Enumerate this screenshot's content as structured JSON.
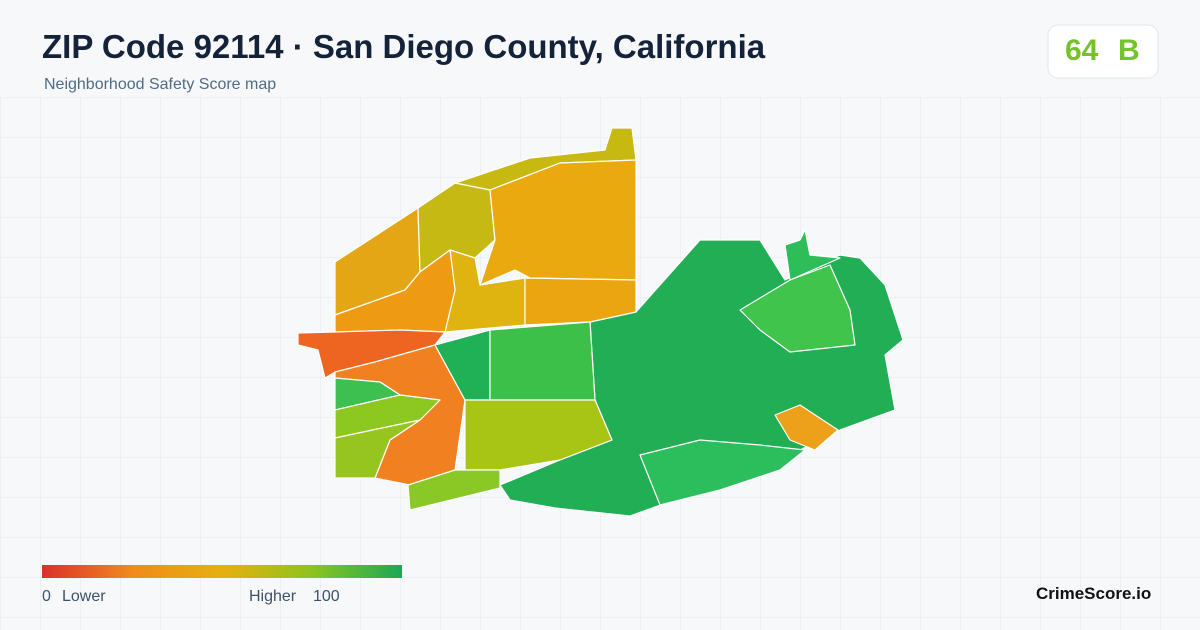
{
  "header": {
    "title": "ZIP Code 92114 · San Diego County, California",
    "subtitle": "Neighborhood Safety Score map"
  },
  "score": {
    "value": "64",
    "grade": "B"
  },
  "legend": {
    "min": "0",
    "min_label": "Lower",
    "max_label": "Higher",
    "max": "100"
  },
  "brand": "CrimeScore.io"
}
